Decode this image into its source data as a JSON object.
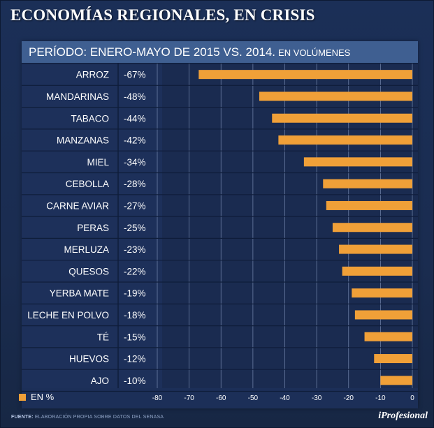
{
  "header": {
    "title": "ECONOMÍAS REGIONALES, EN CRISIS"
  },
  "period": {
    "main": "PERÍODO: ENERO-MAYO DE 2015 VS. 2014.",
    "sub": "EN VOLÚMENES"
  },
  "legend": {
    "label": "EN %"
  },
  "footer": {
    "source_label": "FUENTE:",
    "source_text": "ELABORACIÓN PROPIA SOBRE DATOS DEL SENASA",
    "brand": "iProfesional"
  },
  "colors": {
    "bar": "#f0a038",
    "background": "#1b2f57",
    "period_band": "#3f5f91",
    "grid": "#7f92b8"
  },
  "chart_data": {
    "type": "bar",
    "orientation": "horizontal",
    "categories": [
      "ARROZ",
      "MANDARINAS",
      "TABACO",
      "MANZANAS",
      "MIEL",
      "CEBOLLA",
      "CARNE AVIAR",
      "PERAS",
      "MERLUZA",
      "QUESOS",
      "YERBA MATE",
      "LECHE EN POLVO",
      "TÉ",
      "HUEVOS",
      "AJO"
    ],
    "values": [
      -67,
      -48,
      -44,
      -42,
      -34,
      -28,
      -27,
      -25,
      -23,
      -22,
      -19,
      -18,
      -15,
      -12,
      -10
    ],
    "value_labels": [
      "-67%",
      "-48%",
      "-44%",
      "-42%",
      "-34%",
      "-28%",
      "-27%",
      "-25%",
      "-23%",
      "-22%",
      "-19%",
      "-18%",
      "-15%",
      "-12%",
      "-10%"
    ],
    "xlim": [
      -80,
      0
    ],
    "xticks": [
      -80,
      -70,
      -60,
      -50,
      -40,
      -30,
      -20,
      -10,
      0
    ],
    "grid": true,
    "legend": "bottom-left"
  }
}
